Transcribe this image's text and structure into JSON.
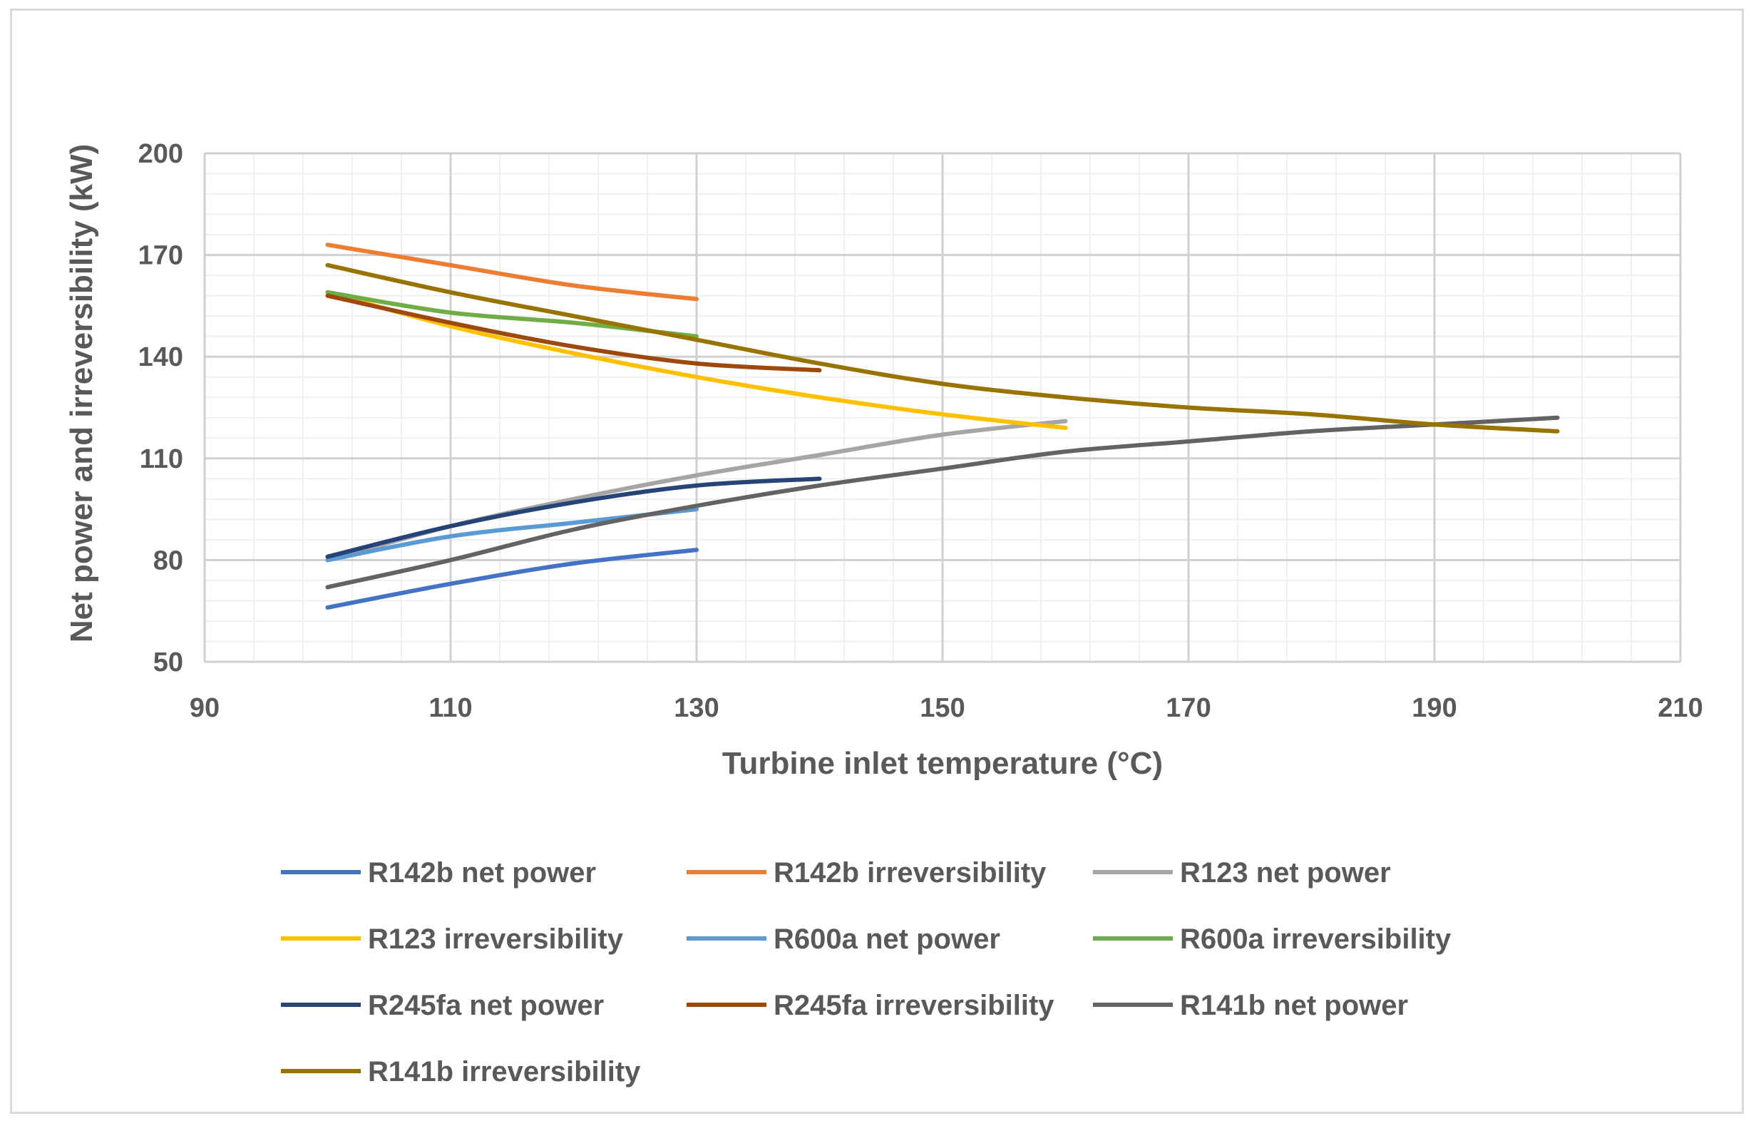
{
  "chart_data": {
    "type": "line",
    "title": "",
    "xlabel": "Turbine inlet temperature (°C)",
    "ylabel": "Net power and irreversibility (kW)",
    "xlim": [
      90,
      210
    ],
    "ylim": [
      50,
      200
    ],
    "xticks": [
      90,
      110,
      130,
      150,
      170,
      190,
      210
    ],
    "yticks": [
      50,
      80,
      110,
      140,
      170,
      200
    ],
    "grid": true,
    "legend_position": "bottom",
    "series": [
      {
        "name": "R142b net power",
        "color": "#4472c4",
        "x": [
          100,
          110,
          120,
          130
        ],
        "y": [
          66,
          73,
          79,
          83
        ]
      },
      {
        "name": "R142b irreversibility",
        "color": "#ed7d31",
        "x": [
          100,
          110,
          120,
          130
        ],
        "y": [
          173,
          167,
          161,
          157
        ]
      },
      {
        "name": "R123 net power",
        "color": "#a5a5a5",
        "x": [
          100,
          110,
          120,
          130,
          140,
          150,
          160
        ],
        "y": [
          80,
          90,
          98,
          105,
          111,
          117,
          121
        ]
      },
      {
        "name": "R123 irreversibility",
        "color": "#ffc000",
        "x": [
          100,
          110,
          120,
          130,
          140,
          150,
          160
        ],
        "y": [
          159,
          149,
          141,
          134,
          128,
          123,
          119
        ]
      },
      {
        "name": "R600a net power",
        "color": "#5b9bd5",
        "x": [
          100,
          110,
          120,
          130
        ],
        "y": [
          80,
          87,
          91,
          95
        ]
      },
      {
        "name": "R600a irreversibility",
        "color": "#70ad47",
        "x": [
          100,
          110,
          120,
          130
        ],
        "y": [
          159,
          153,
          150,
          146
        ]
      },
      {
        "name": "R245fa net power",
        "color": "#264478",
        "x": [
          100,
          110,
          120,
          130,
          140
        ],
        "y": [
          81,
          90,
          97,
          102,
          104
        ]
      },
      {
        "name": "R245fa irreversibility",
        "color": "#9e480e",
        "x": [
          100,
          110,
          120,
          130,
          140
        ],
        "y": [
          158,
          150,
          143,
          138,
          136
        ]
      },
      {
        "name": "R141b net power",
        "color": "#636363",
        "x": [
          100,
          110,
          120,
          130,
          140,
          150,
          160,
          170,
          180,
          190,
          200
        ],
        "y": [
          72,
          80,
          89,
          96,
          102,
          107,
          112,
          115,
          118,
          120,
          122
        ]
      },
      {
        "name": "R141b irreversibility",
        "color": "#997300",
        "x": [
          100,
          110,
          120,
          130,
          140,
          150,
          160,
          170,
          180,
          190,
          200
        ],
        "y": [
          167,
          159,
          152,
          145,
          138,
          132,
          128,
          125,
          123,
          120,
          118
        ]
      }
    ]
  }
}
